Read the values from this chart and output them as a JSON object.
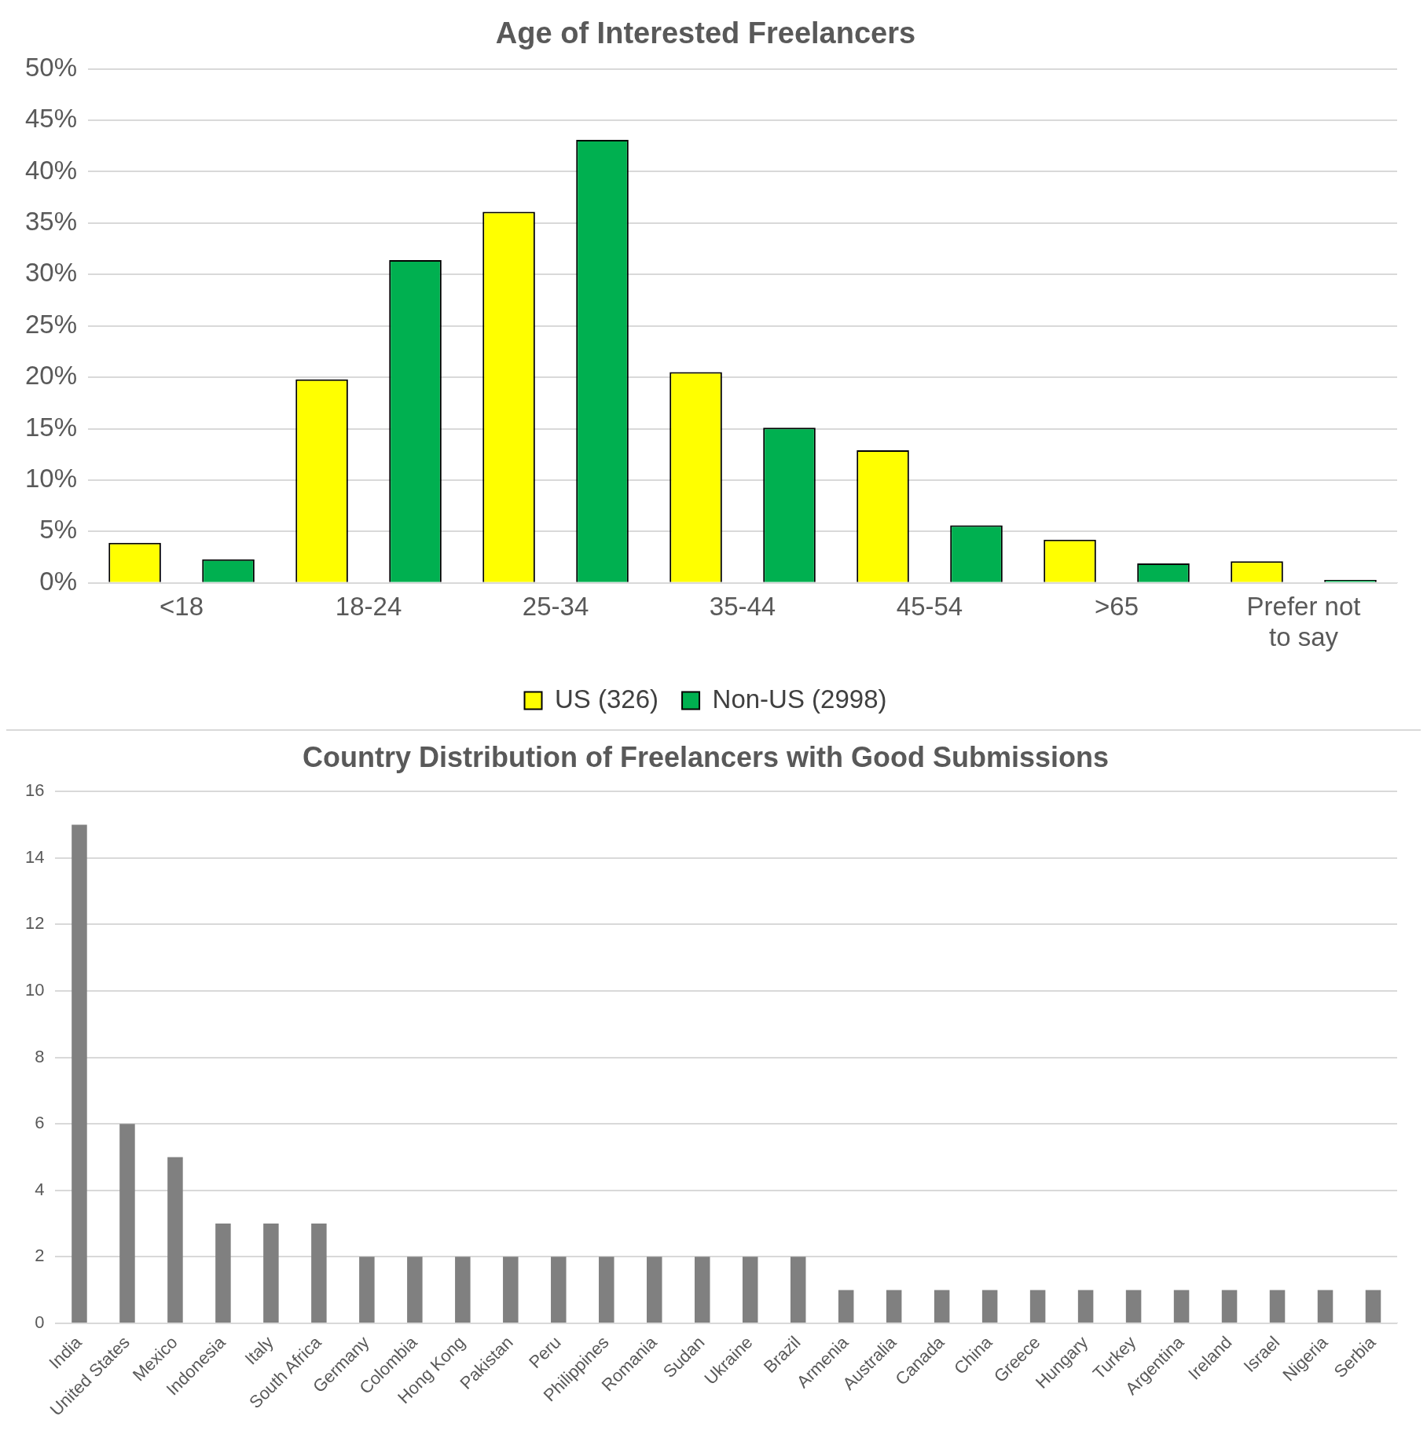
{
  "chart_data": [
    {
      "type": "bar",
      "title": "Age of Interested Freelancers",
      "categories": [
        "<18",
        "18-24",
        "25-34",
        "35-44",
        "45-54",
        ">65",
        "Prefer not to say"
      ],
      "series": [
        {
          "name": "US (326)",
          "color": "#ffff00",
          "values": [
            3.9,
            19.8,
            36.1,
            20.5,
            12.9,
            4.2,
            2.1
          ]
        },
        {
          "name": "Non-US (2998)",
          "color": "#00b050",
          "values": [
            2.3,
            31.4,
            43.1,
            15.1,
            5.6,
            1.9,
            0.3
          ]
        }
      ],
      "ylim": [
        0,
        50
      ],
      "yticks": [
        {
          "value": 0,
          "label": "0%"
        },
        {
          "value": 5,
          "label": "5%"
        },
        {
          "value": 10,
          "label": "10%"
        },
        {
          "value": 15,
          "label": "15%"
        },
        {
          "value": 20,
          "label": "20%"
        },
        {
          "value": 25,
          "label": "25%"
        },
        {
          "value": 30,
          "label": "30%"
        },
        {
          "value": 35,
          "label": "35%"
        },
        {
          "value": 40,
          "label": "40%"
        },
        {
          "value": 45,
          "label": "45%"
        },
        {
          "value": 50,
          "label": "50%"
        }
      ],
      "grid": "y",
      "legend": "bottom"
    },
    {
      "type": "bar",
      "title": "Country Distribution of Freelancers with Good Submissions",
      "categories": [
        "India",
        "United States",
        "Mexico",
        "Indonesia",
        "Italy",
        "South Africa",
        "Germany",
        "Colombia",
        "Hong Kong",
        "Pakistan",
        "Peru",
        "Philippines",
        "Romania",
        "Sudan",
        "Ukraine",
        "Brazil",
        "Armenia",
        "Australia",
        "Canada",
        "China",
        "Greece",
        "Hungary",
        "Turkey",
        "Argentina",
        "Ireland",
        "Israel",
        "Nigeria",
        "Serbia"
      ],
      "values": [
        15,
        6,
        5,
        3,
        3,
        3,
        2,
        2,
        2,
        2,
        2,
        2,
        2,
        2,
        2,
        2,
        1,
        1,
        1,
        1,
        1,
        1,
        1,
        1,
        1,
        1,
        1,
        1
      ],
      "color": "#808080",
      "ylim": [
        0,
        16
      ],
      "yticks": [
        0,
        2,
        4,
        6,
        8,
        10,
        12,
        14,
        16
      ],
      "grid": "y",
      "legend": false
    }
  ]
}
